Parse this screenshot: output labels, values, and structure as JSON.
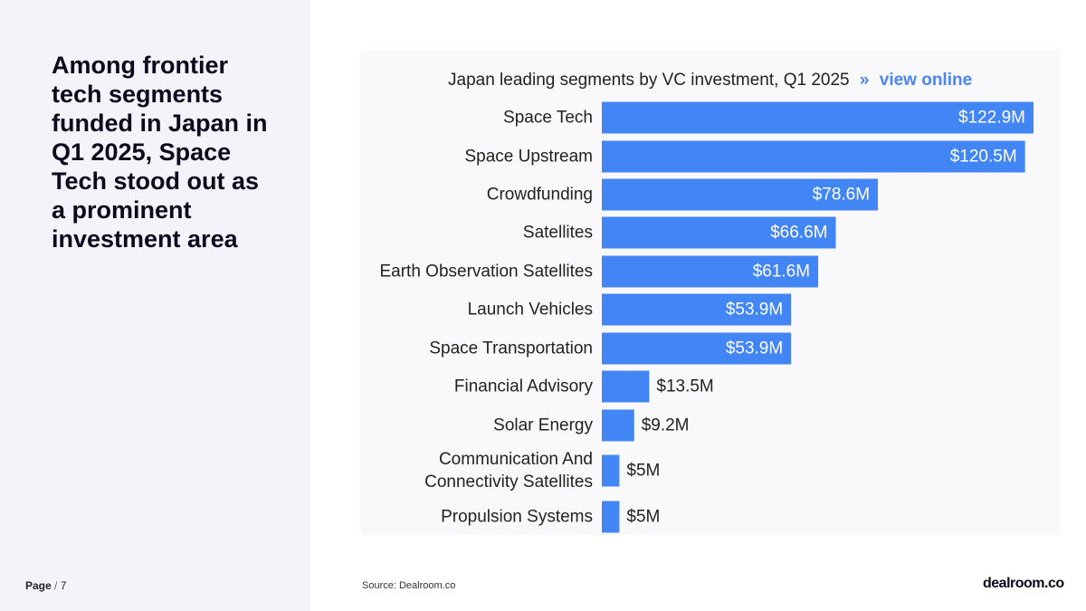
{
  "headline": "Among frontier tech segments funded in Japan in Q1 2025, Space Tech stood out as a prominent investment area",
  "footer": {
    "page_label": "Page",
    "page_number": "7"
  },
  "source": "Source:  Dealroom.co",
  "logo": "dealroom.co",
  "colors": {
    "bar": "#4285f4",
    "label_text": "#222222",
    "value_inside": "#ffffff",
    "link": "#4a86f4"
  },
  "chart_data": {
    "type": "bar",
    "orientation": "horizontal",
    "title": "Japan leading segments by VC investment, Q1 2025",
    "title_separator": "»",
    "title_link": "view online",
    "categories": [
      "Space Tech",
      "Space Upstream",
      "Crowdfunding",
      "Satellites",
      "Earth Observation Satellites",
      "Launch Vehicles",
      "Space Transportation",
      "Financial Advisory",
      "Solar Energy",
      "Communication And Connectivity Satellites",
      "Propulsion Systems"
    ],
    "category_lines": [
      [
        "Space Tech"
      ],
      [
        "Space Upstream"
      ],
      [
        "Crowdfunding"
      ],
      [
        "Satellites"
      ],
      [
        "Earth Observation Satellites"
      ],
      [
        "Launch Vehicles"
      ],
      [
        "Space Transportation"
      ],
      [
        "Financial Advisory"
      ],
      [
        "Solar Energy"
      ],
      [
        "Communication And",
        "Connectivity Satellites"
      ],
      [
        "Propulsion Systems"
      ]
    ],
    "values": [
      122.9,
      120.5,
      78.6,
      66.6,
      61.6,
      53.9,
      53.9,
      13.5,
      9.2,
      5,
      5
    ],
    "value_labels": [
      "$122.9M",
      "$120.5M",
      "$78.6M",
      "$66.6M",
      "$61.6M",
      "$53.9M",
      "$53.9M",
      "$13.5M",
      "$9.2M",
      "$5M",
      "$5M"
    ],
    "unit": "$M",
    "xlim": [
      0,
      122.9
    ],
    "grid": false,
    "legend": "none"
  }
}
